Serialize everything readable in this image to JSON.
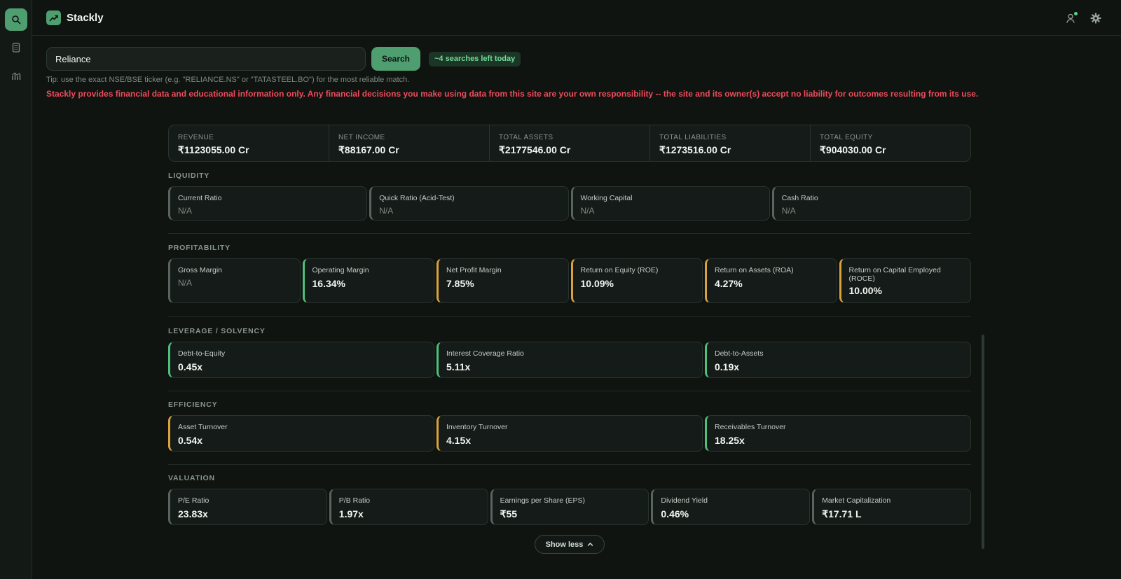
{
  "app": {
    "name": "Stackly",
    "accent": "#4f9e70"
  },
  "sidebar": {
    "items": [
      {
        "icon": "search-icon",
        "active": true
      },
      {
        "icon": "calculator-icon",
        "active": false
      },
      {
        "icon": "bar-chart-icon",
        "active": false
      }
    ]
  },
  "topbar": {
    "icons": [
      "user-icon",
      "gear-icon"
    ]
  },
  "search": {
    "value": "Reliance",
    "button_label": "Search",
    "quota": "~4 searches left today",
    "tip": "Tip: use the exact NSE/BSE ticker (e.g. \"RELIANCE.NS\" or \"TATASTEEL.BO\") for the most reliable match.",
    "disclaimer": "Stackly provides financial data and educational information only. Any financial decisions you make using data from this site are your own responsibility -- the site and its owner(s) accept no liability for outcomes resulting from its use."
  },
  "summary": [
    {
      "label": "Revenue",
      "value": "₹1123055.00 Cr"
    },
    {
      "label": "Net Income",
      "value": "₹88167.00 Cr"
    },
    {
      "label": "Total Assets",
      "value": "₹2177546.00 Cr"
    },
    {
      "label": "Total Liabilities",
      "value": "₹1273516.00 Cr"
    },
    {
      "label": "Total Equity",
      "value": "₹904030.00 Cr"
    }
  ],
  "sections": {
    "liquidity": {
      "title": "Liquidity",
      "cards": [
        {
          "label": "Current Ratio",
          "value": "N/A",
          "status": "grey"
        },
        {
          "label": "Quick Ratio (Acid-Test)",
          "value": "N/A",
          "status": "grey"
        },
        {
          "label": "Working Capital",
          "value": "N/A",
          "status": "grey"
        },
        {
          "label": "Cash Ratio",
          "value": "N/A",
          "status": "grey"
        }
      ]
    },
    "profitability": {
      "title": "Profitability",
      "cards": [
        {
          "label": "Gross Margin",
          "value": "N/A",
          "status": "grey"
        },
        {
          "label": "Operating Margin",
          "value": "16.34%",
          "status": "green"
        },
        {
          "label": "Net Profit Margin",
          "value": "7.85%",
          "status": "amber"
        },
        {
          "label": "Return on Equity (ROE)",
          "value": "10.09%",
          "status": "amber"
        },
        {
          "label": "Return on Assets (ROA)",
          "value": "4.27%",
          "status": "amber"
        },
        {
          "label": "Return on Capital Employed (ROCE)",
          "value": "10.00%",
          "status": "amber"
        }
      ]
    },
    "leverage": {
      "title": "Leverage / Solvency",
      "cards": [
        {
          "label": "Debt-to-Equity",
          "value": "0.45x",
          "status": "green"
        },
        {
          "label": "Interest Coverage Ratio",
          "value": "5.11x",
          "status": "green"
        },
        {
          "label": "Debt-to-Assets",
          "value": "0.19x",
          "status": "green"
        }
      ]
    },
    "efficiency": {
      "title": "Efficiency",
      "cards": [
        {
          "label": "Asset Turnover",
          "value": "0.54x",
          "status": "amber"
        },
        {
          "label": "Inventory Turnover",
          "value": "4.15x",
          "status": "amber"
        },
        {
          "label": "Receivables Turnover",
          "value": "18.25x",
          "status": "green"
        }
      ]
    },
    "valuation": {
      "title": "Valuation",
      "cards": [
        {
          "label": "P/E Ratio",
          "value": "23.83x",
          "status": "grey"
        },
        {
          "label": "P/B Ratio",
          "value": "1.97x",
          "status": "grey"
        },
        {
          "label": "Earnings per Share (EPS)",
          "value": "₹55",
          "status": "grey"
        },
        {
          "label": "Dividend Yield",
          "value": "0.46%",
          "status": "grey"
        },
        {
          "label": "Market Capitalization",
          "value": "₹17.71 L",
          "status": "grey"
        }
      ]
    }
  },
  "show_less_label": "Show less",
  "status_colors": {
    "green": "#4fbf7c",
    "amber": "#d9a23c",
    "grey": "#5a6560"
  }
}
